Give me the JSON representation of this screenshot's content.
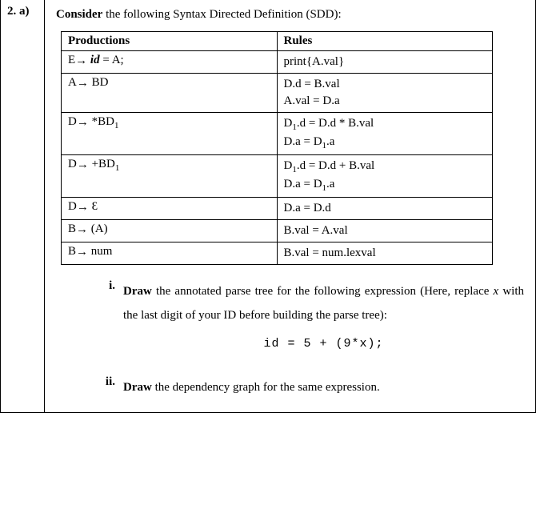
{
  "question_number": "2. a)",
  "intro": {
    "bold": "Consider",
    "rest": " the following Syntax Directed Definition (SDD):"
  },
  "table": {
    "headers": {
      "col1": "Productions",
      "col2": "Rules"
    },
    "rows": [
      {
        "prod_html": "E<span class='arrow'>→</span> <span class='italic bold'>id</span>  = A;",
        "rules": [
          "print{A.val}"
        ]
      },
      {
        "prod_html": "A<span class='arrow'>→</span> BD",
        "rules": [
          "D.d = B.val",
          "A.val = D.a"
        ]
      },
      {
        "prod_html": "D<span class='arrow'>→</span> *BD<sub>1</sub>",
        "rules": [
          "D<sub>1</sub>.d = D.d * B.val",
          "D.a = D<sub>1</sub>.a"
        ]
      },
      {
        "prod_html": "D<span class='arrow'>→</span> +BD<sub>1</sub>",
        "rules": [
          "D<sub>1</sub>.d = D.d + B.val",
          "D.a = D<sub>1</sub>.a"
        ]
      },
      {
        "prod_html": "D<span class='arrow'>→</span> Ɛ",
        "rules": [
          "D.a = D.d"
        ]
      },
      {
        "prod_html": "B<span class='arrow'>→</span> (A)",
        "rules": [
          "B.val = A.val"
        ]
      },
      {
        "prod_html": "B<span class='arrow'>→</span> num",
        "rules": [
          "B.val = num.lexval"
        ]
      }
    ]
  },
  "tasks": {
    "i": {
      "num": "i.",
      "bold": "Draw",
      "rest": " the annotated parse tree for the following expression (Here, replace ",
      "var": "x",
      "rest2": " with the last digit of your ID before building the parse tree):",
      "code": "id  = 5 + (9*x);"
    },
    "ii": {
      "num": "ii.",
      "bold": "Draw",
      "rest": " the dependency graph for the same expression."
    }
  }
}
